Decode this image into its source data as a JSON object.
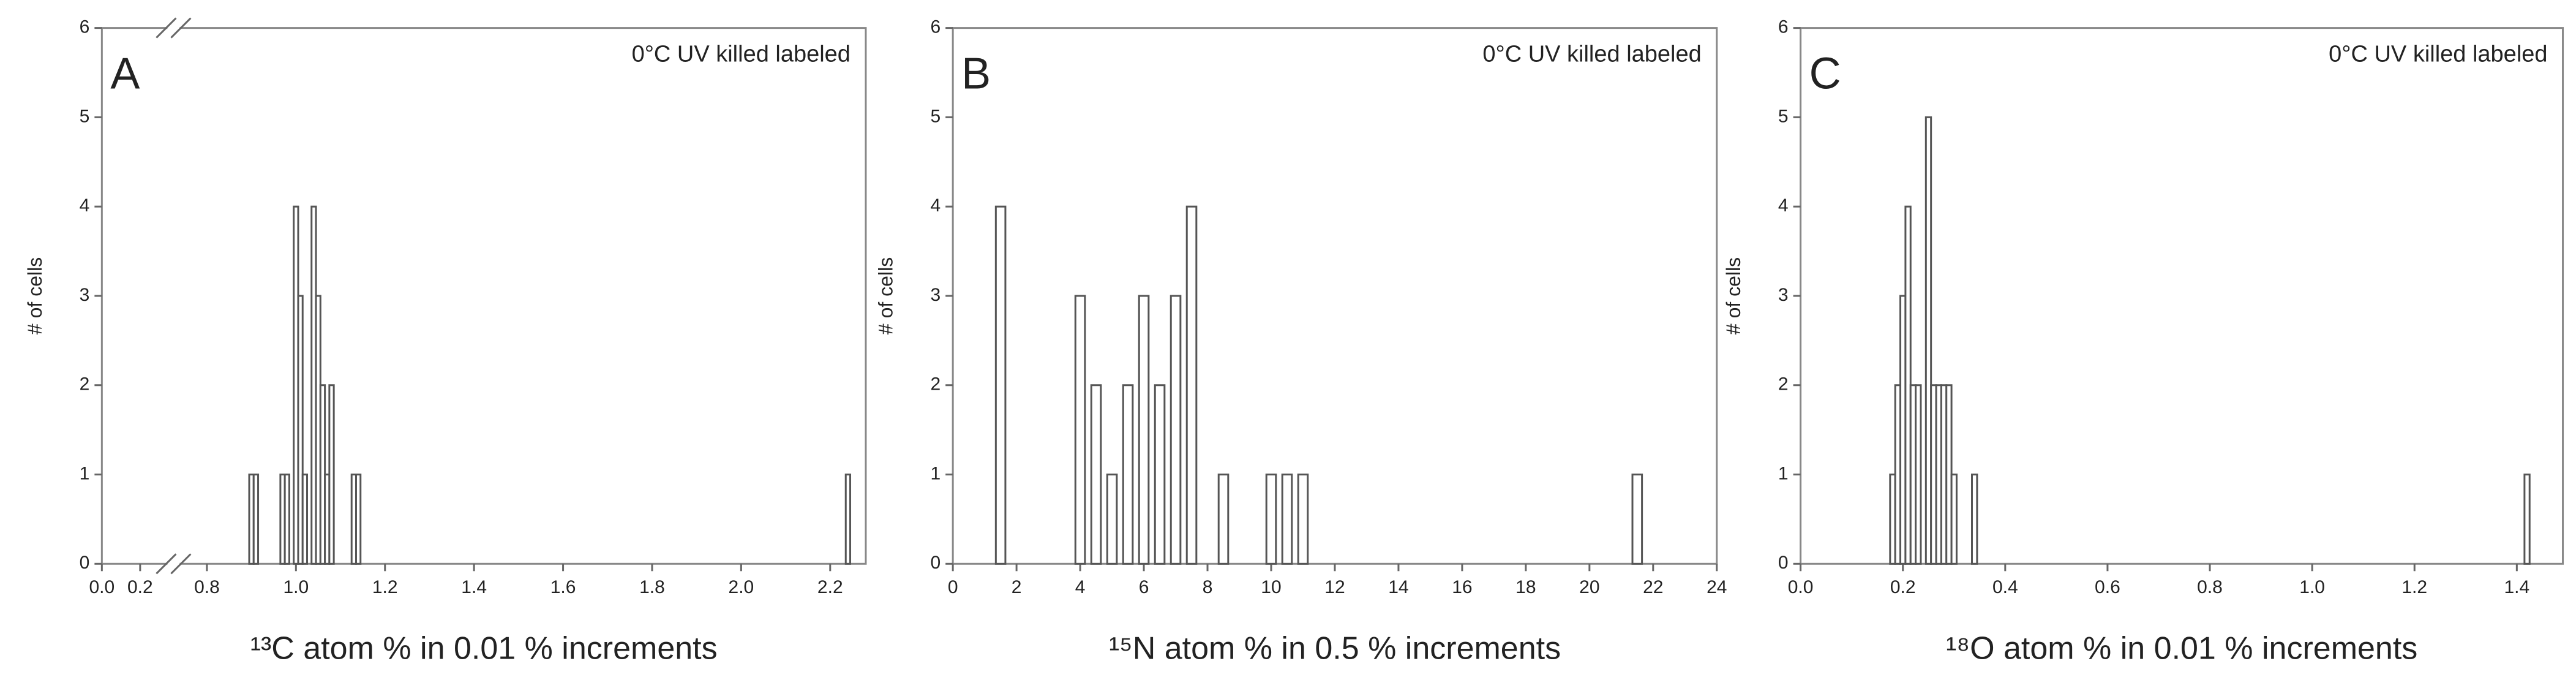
{
  "chart_data": [
    {
      "type": "bar",
      "panel_label": "A",
      "annotation": "0°C UV killed labeled",
      "xlabel": "¹³C atom % in 0.01 % increments",
      "ylabel": "# of cells",
      "x": [
        0.9,
        0.91,
        0.97,
        0.98,
        1.0,
        1.01,
        1.02,
        1.04,
        1.05,
        1.06,
        1.07,
        1.08,
        1.13,
        1.14,
        2.24
      ],
      "values": [
        1,
        1,
        1,
        1,
        4,
        3,
        1,
        4,
        3,
        2,
        1,
        2,
        1,
        1,
        1
      ],
      "bar_width": 0.01,
      "color": "#ffffff",
      "axis_break": true,
      "xlim": [
        0,
        2.28
      ],
      "xticks": [
        {
          "value": 0,
          "label": "0.0"
        },
        0.2,
        0.8,
        {
          "value": 1,
          "label": "1.0"
        },
        1.2,
        1.4,
        1.6,
        1.8,
        {
          "value": 2,
          "label": "2.0"
        },
        2.2
      ],
      "ylim": [
        0,
        6
      ],
      "yticks": [
        0,
        1,
        2,
        3,
        4,
        5,
        6
      ]
    },
    {
      "type": "bar",
      "panel_label": "B",
      "annotation": "0°C UV killed labeled",
      "xlabel": "¹⁵N atom % in 0.5 % increments",
      "ylabel": "# of cells",
      "x": [
        1.5,
        4,
        4.5,
        5,
        5.5,
        6,
        6.5,
        7,
        7.5,
        8.5,
        10,
        10.5,
        11,
        21.5
      ],
      "values": [
        4,
        3,
        2,
        1,
        2,
        3,
        2,
        3,
        4,
        1,
        1,
        1,
        1,
        1
      ],
      "bar_width": 0.3,
      "color": "#ffffff",
      "axis_break": false,
      "xlim": [
        0,
        24
      ],
      "xticks": [
        0,
        2,
        4,
        6,
        8,
        10,
        12,
        14,
        16,
        18,
        20,
        22,
        24
      ],
      "ylim": [
        0,
        6
      ],
      "yticks": [
        0,
        1,
        2,
        3,
        4,
        5,
        6
      ]
    },
    {
      "type": "bar",
      "panel_label": "C",
      "annotation": "0°C UV killed labeled",
      "xlabel": "¹⁸O atom % in 0.01 % increments",
      "ylabel": "# of cells",
      "x": [
        0.18,
        0.19,
        0.2,
        0.21,
        0.22,
        0.23,
        0.25,
        0.26,
        0.27,
        0.28,
        0.29,
        0.3,
        0.34,
        1.42
      ],
      "values": [
        1,
        2,
        3,
        4,
        2,
        2,
        5,
        2,
        2,
        2,
        2,
        1,
        1,
        1
      ],
      "bar_width": 0.01,
      "color": "#ffffff",
      "axis_break": false,
      "xlim": [
        0,
        1.49
      ],
      "xticks": [
        {
          "value": 0,
          "label": "0.0"
        },
        0.2,
        0.4,
        0.6,
        0.8,
        {
          "value": 1,
          "label": "1.0"
        },
        1.2,
        1.4
      ],
      "ylim": [
        0,
        6
      ],
      "yticks": [
        0,
        1,
        2,
        3,
        4,
        5,
        6
      ]
    }
  ]
}
